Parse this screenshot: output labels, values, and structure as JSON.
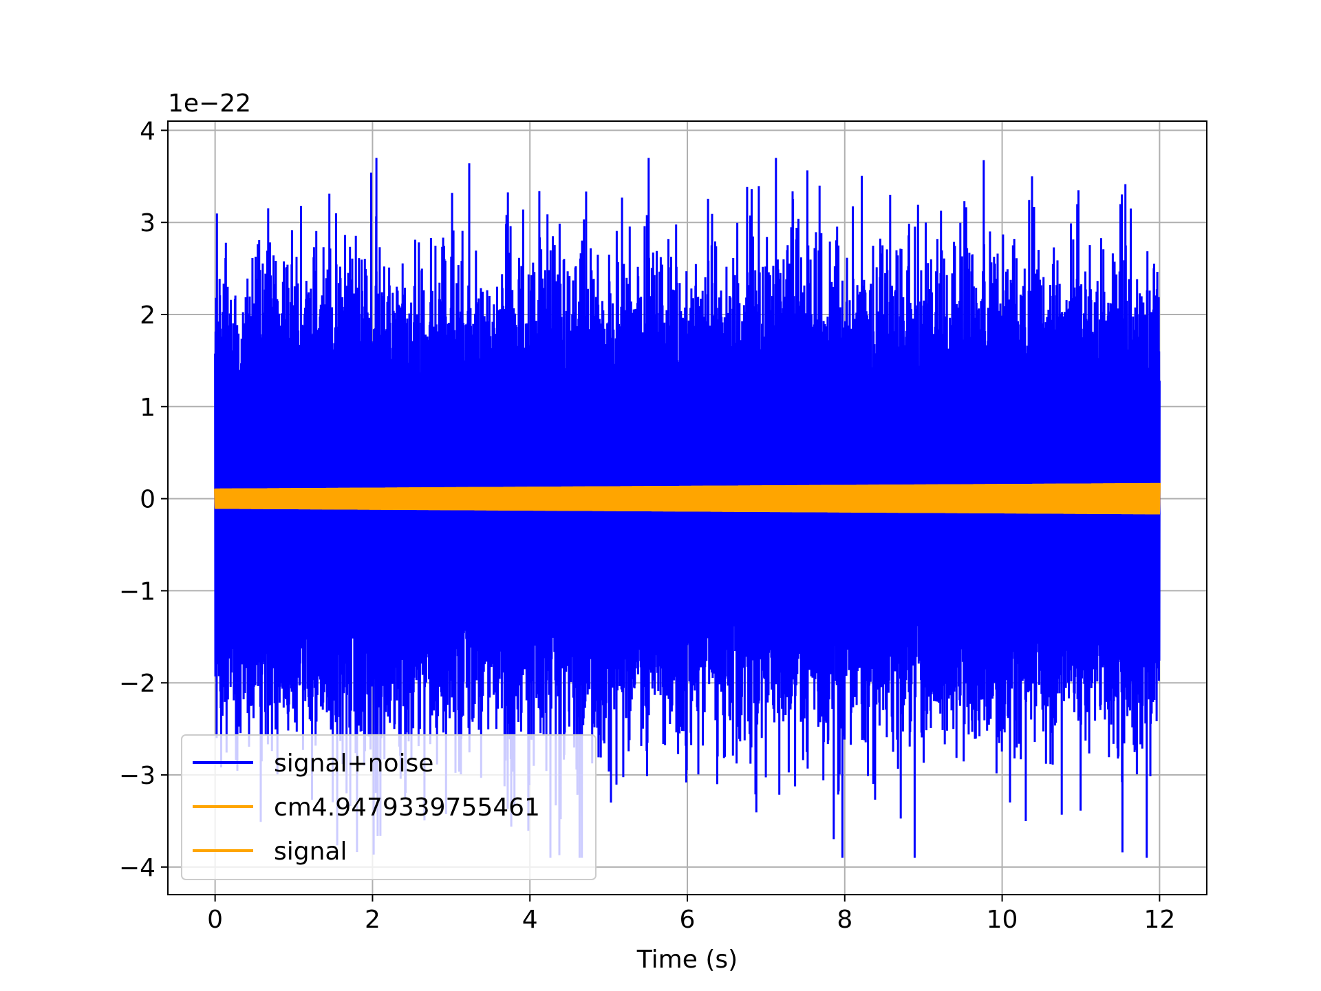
{
  "chart_data": {
    "type": "line",
    "title": "",
    "xlabel": "Time (s)",
    "ylabel": "",
    "y_offset_label": "1e−22",
    "xlim": [
      -0.6,
      12.6
    ],
    "ylim": [
      -4.3,
      4.1
    ],
    "x_ticks": [
      0,
      2,
      4,
      6,
      8,
      10,
      12
    ],
    "x_tick_labels": [
      "0",
      "2",
      "4",
      "6",
      "8",
      "10",
      "12"
    ],
    "y_ticks": [
      -4,
      -3,
      -2,
      -1,
      0,
      1,
      2,
      3,
      4
    ],
    "y_tick_labels": [
      "−4",
      "−3",
      "−2",
      "−1",
      "0",
      "1",
      "2",
      "3",
      "4"
    ],
    "grid": true,
    "legend_position": "lower-left",
    "series": [
      {
        "name": "signal+noise",
        "color": "#0000ff",
        "x_range": [
          0,
          12
        ],
        "typical_amplitude": 1.6,
        "peak_max": 3.7,
        "peak_min": -3.9,
        "highlight_peaks": [
          [
            2.05,
            3.7
          ],
          [
            10.38,
            3.5
          ],
          [
            7.68,
            3.4
          ],
          [
            5.17,
            3.27
          ],
          [
            10.97,
            3.35
          ],
          [
            7.97,
            -3.9
          ],
          [
            10.3,
            -3.5
          ],
          [
            5.03,
            -3.3
          ],
          [
            1.67,
            -3.2
          ],
          [
            4.63,
            -3.2
          ],
          [
            6.38,
            -3.1
          ]
        ]
      },
      {
        "name": "cm4.9479339755461",
        "color": "#ffa500",
        "x_range": [
          0,
          12
        ],
        "amplitude_start": 0.11,
        "amplitude_end": 0.17
      },
      {
        "name": "signal",
        "color": "#ffa500",
        "x_range": [
          0,
          12
        ],
        "amplitude_start": 0.11,
        "amplitude_end": 0.17
      }
    ]
  }
}
